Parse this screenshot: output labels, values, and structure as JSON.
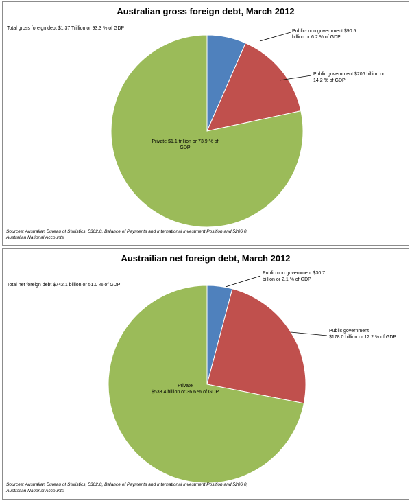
{
  "chart_data": [
    {
      "type": "pie",
      "title": "Australian gross foreign debt, March 2012",
      "note": "Total gross foreign debt $1.37 Trillion or 93.3 % of GDP",
      "slices": [
        {
          "label_lines": [
            "Public- non government $90.5",
            "billion or 6.2 % of GDP"
          ],
          "value": 6.2,
          "color": "#4f81bd"
        },
        {
          "label_lines": [
            "Public government $206 billion or",
            "14.2 % of GDP"
          ],
          "value": 14.2,
          "color": "#c0504d"
        },
        {
          "label_lines": [
            "Private $1.1 trillion or 73.9 % of",
            "GDP"
          ],
          "value": 73.9,
          "color": "#9bbb59"
        }
      ],
      "source_lines": [
        "Sources: Australian Bureau of Statistics, 5302.0, Balance of Payments and International Investment Position and 5206.0,",
        "Australian National Accounts."
      ]
    },
    {
      "type": "pie",
      "title": "Austrailian net foreign debt, March 2012",
      "note": "Total net foreign debt $742.1 billion or 51.0 % of GDP",
      "slices": [
        {
          "label_lines": [
            "Public non government $30.7",
            "billion or 2.1 % of GDP"
          ],
          "value": 2.1,
          "color": "#4f81bd"
        },
        {
          "label_lines": [
            "Public government",
            "$178.0 billion or 12.2 % of GDP"
          ],
          "value": 12.2,
          "color": "#c0504d"
        },
        {
          "label_lines": [
            "Private",
            "$533.4 billion or 36.6 % of GDP"
          ],
          "value": 36.6,
          "color": "#9bbb59"
        }
      ],
      "source_lines": [
        "Sources: Australian Bureau of Statistics, 5302.0, Balance of Payments and International Investment Position and 5206.0,",
        "Australian National Accounts."
      ]
    }
  ]
}
